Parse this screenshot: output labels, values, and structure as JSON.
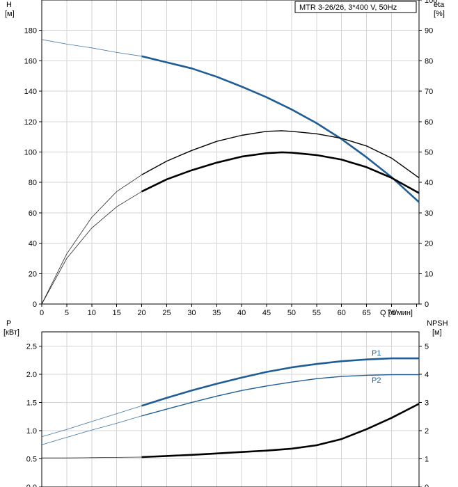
{
  "chart_data": [
    {
      "type": "line",
      "title_box": "MTR 3-26/26, 3*400 V, 50Hz",
      "xlabel": "Q [л/мин]",
      "x_ticks": [
        "0",
        "5",
        "10",
        "15",
        "20",
        "25",
        "30",
        "35",
        "40",
        "45",
        "50",
        "55",
        "60",
        "65",
        "70"
      ],
      "xlim": [
        0,
        75.5
      ],
      "ylabel_left": "H",
      "ylabel_left_unit": "[м]",
      "ylim_left": [
        0,
        200
      ],
      "y_ticks_left": [
        "0",
        "20",
        "40",
        "60",
        "80",
        "100",
        "120",
        "140",
        "160",
        "180"
      ],
      "ylabel_right": "eta",
      "ylabel_right_unit": "[%]",
      "ylim_right": [
        0,
        100
      ],
      "y_ticks_right": [
        "0",
        "10",
        "20",
        "30",
        "40",
        "50",
        "60",
        "70",
        "80",
        "90",
        "100"
      ],
      "grid": true,
      "series": [
        {
          "axis": "left",
          "color": "#1f5d96",
          "style": "thin-then-bold",
          "x": [
            0,
            5,
            10,
            15,
            20,
            25,
            30,
            35,
            40,
            45,
            50,
            55,
            60,
            65,
            70,
            75.5
          ],
          "y": [
            174,
            171,
            168.5,
            165.5,
            163,
            159,
            155,
            149.5,
            143,
            136,
            128,
            119,
            108.5,
            96.5,
            83.5,
            67
          ]
        },
        {
          "axis": "right",
          "color": "#000000",
          "style": "thin-then-medium",
          "x": [
            0,
            5,
            10,
            15,
            20,
            25,
            30,
            35,
            40,
            45,
            48,
            50,
            55,
            60,
            65,
            70,
            75.5
          ],
          "y": [
            0,
            16.5,
            28.5,
            37,
            42.5,
            47,
            50.5,
            53.5,
            55.5,
            56.8,
            57,
            56.8,
            56,
            54.5,
            52,
            48,
            41.5
          ]
        },
        {
          "axis": "right",
          "color": "#000000",
          "style": "thin-then-bold",
          "x": [
            0,
            5,
            10,
            15,
            20,
            25,
            30,
            35,
            40,
            45,
            48,
            50,
            55,
            60,
            65,
            70,
            75.5
          ],
          "y": [
            0,
            15,
            25,
            32,
            37,
            41,
            44,
            46.5,
            48.5,
            49.6,
            49.9,
            49.8,
            49,
            47.5,
            45,
            41.5,
            36.5
          ]
        }
      ]
    },
    {
      "type": "line",
      "xlim": [
        0,
        75.5
      ],
      "ylabel_left": "P",
      "ylabel_left_unit": "[кВт]",
      "ylim_left": [
        0,
        2.75
      ],
      "y_ticks_left": [
        "0.0",
        "0.5",
        "1.0",
        "1.5",
        "2.0",
        "2.5"
      ],
      "ylabel_right": "NPSH",
      "ylabel_right_unit": "[м]",
      "ylim_right": [
        0,
        5.5
      ],
      "y_ticks_right": [
        "0",
        "1",
        "2",
        "3",
        "4",
        "5"
      ],
      "grid": true,
      "series": [
        {
          "name": "P1",
          "axis": "left",
          "color": "#1f5d96",
          "style": "thin-then-bold",
          "x": [
            0,
            5,
            10,
            15,
            20,
            25,
            30,
            35,
            40,
            45,
            50,
            55,
            60,
            65,
            70,
            75.5
          ],
          "y": [
            0.89,
            1.02,
            1.16,
            1.3,
            1.44,
            1.58,
            1.71,
            1.83,
            1.94,
            2.04,
            2.12,
            2.18,
            2.23,
            2.26,
            2.28,
            2.28
          ]
        },
        {
          "name": "P2",
          "axis": "left",
          "color": "#1f5d96",
          "style": "thin-then-medium",
          "x": [
            0,
            5,
            10,
            15,
            20,
            25,
            30,
            35,
            40,
            45,
            50,
            55,
            60,
            65,
            70,
            75.5
          ],
          "y": [
            0.75,
            0.88,
            1.01,
            1.13,
            1.26,
            1.38,
            1.5,
            1.61,
            1.71,
            1.79,
            1.86,
            1.92,
            1.96,
            1.98,
            1.99,
            1.99
          ]
        },
        {
          "axis": "right",
          "color": "#000000",
          "style": "thin-then-bold",
          "x": [
            0,
            5,
            10,
            15,
            20,
            25,
            30,
            35,
            40,
            45,
            50,
            55,
            60,
            65,
            70,
            75.5
          ],
          "y": [
            1.03,
            1.03,
            1.04,
            1.05,
            1.06,
            1.1,
            1.14,
            1.19,
            1.24,
            1.29,
            1.36,
            1.48,
            1.7,
            2.05,
            2.45,
            2.95
          ]
        }
      ]
    }
  ]
}
